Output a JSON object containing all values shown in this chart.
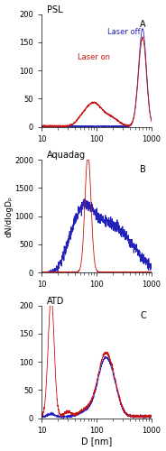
{
  "title_a": "PSL",
  "title_b": "Aquadag",
  "title_c": "ATD",
  "label_a": "A",
  "label_b": "B",
  "label_c": "C",
  "ylabel": "dN/dlogDₚ",
  "xlabel": "D [nm]",
  "laser_off_label": "Laser off",
  "laser_on_label": "Laser on",
  "blue_color": "#2222bb",
  "red_color": "#cc1111",
  "xlim": [
    10,
    1000
  ],
  "ylim_a": [
    0,
    200
  ],
  "ylim_b": [
    0,
    2000
  ],
  "ylim_c": [
    0,
    200
  ],
  "yticks_a": [
    0,
    50,
    100,
    150,
    200
  ],
  "yticks_b": [
    0,
    500,
    1000,
    1500,
    2000
  ],
  "yticks_c": [
    0,
    50,
    100,
    150,
    200
  ],
  "xticks": [
    10,
    100,
    1000
  ]
}
